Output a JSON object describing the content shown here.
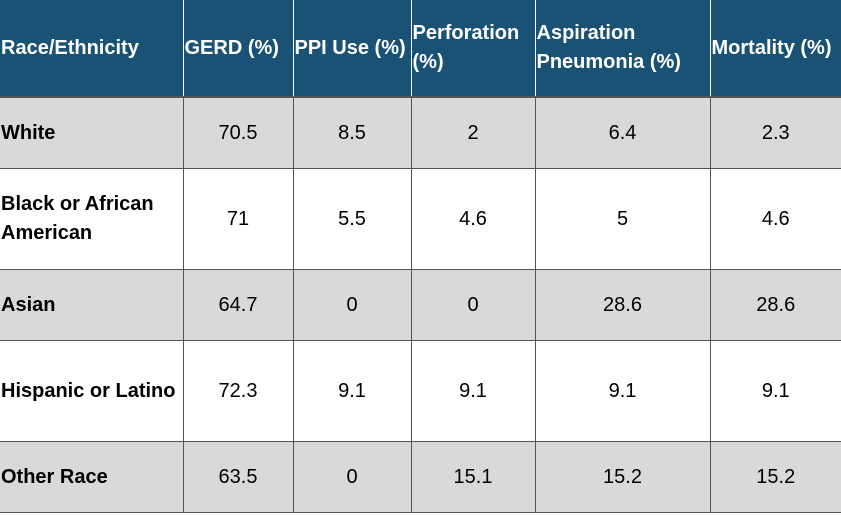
{
  "table": {
    "headers": [
      "Race/Ethnicity",
      "GERD (%)",
      "PPI Use (%)",
      "Perforation (%)",
      "Aspiration Pneumonia (%)",
      "Mortality (%)"
    ],
    "rows": [
      [
        "White",
        "70.5",
        "8.5",
        "2",
        "6.4",
        "2.3"
      ],
      [
        "Black or African American",
        "71",
        "5.5",
        "4.6",
        "5",
        "4.6"
      ],
      [
        "Asian",
        "64.7",
        "0",
        "0",
        "28.6",
        "28.6"
      ],
      [
        "Hispanic or Latino",
        "72.3",
        "9.1",
        "9.1",
        "9.1",
        "9.1"
      ],
      [
        "Other Race",
        "63.5",
        "0",
        "15.1",
        "15.2",
        "15.2"
      ]
    ]
  },
  "colors": {
    "header_bg": "#1a5276",
    "header_text": "#ffffff",
    "stripe": "#d9d9d9",
    "row_bg": "#ffffff"
  }
}
